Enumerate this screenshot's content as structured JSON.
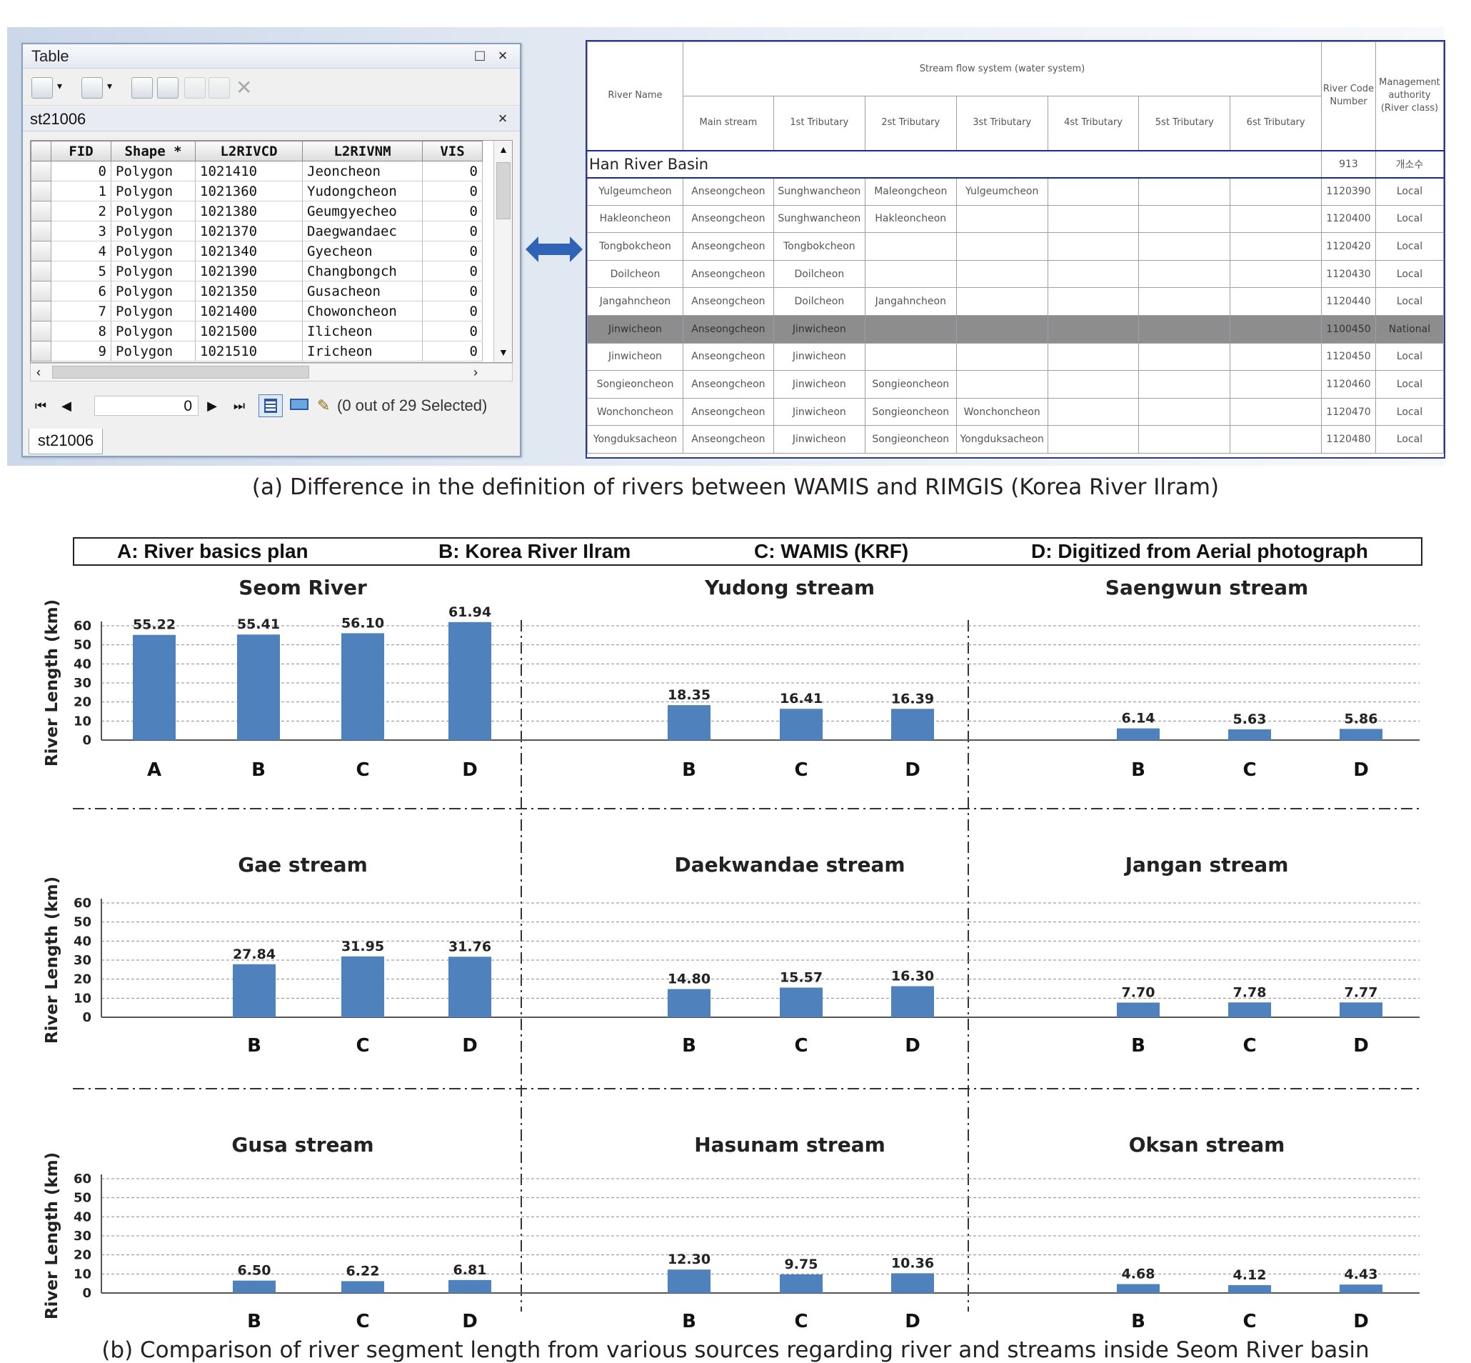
{
  "arcmap": {
    "window_title": "Table",
    "layer_name": "st21006",
    "columns": [
      "FID",
      "Shape *",
      "L2RIVCD",
      "L2RIVNM",
      "VIS"
    ],
    "rows": [
      [
        "0",
        "Polygon",
        "1021410",
        "Jeoncheon",
        "0"
      ],
      [
        "1",
        "Polygon",
        "1021360",
        "Yudongcheon",
        "0"
      ],
      [
        "2",
        "Polygon",
        "1021380",
        "Geumgyecheo",
        "0"
      ],
      [
        "3",
        "Polygon",
        "1021370",
        "Daegwandaec",
        "0"
      ],
      [
        "4",
        "Polygon",
        "1021340",
        "Gyecheon",
        "0"
      ],
      [
        "5",
        "Polygon",
        "1021390",
        "Changbongch",
        "0"
      ],
      [
        "6",
        "Polygon",
        "1021350",
        "Gusacheon",
        "0"
      ],
      [
        "7",
        "Polygon",
        "1021400",
        "Chowoncheon",
        "0"
      ],
      [
        "8",
        "Polygon",
        "1021500",
        "Ilicheon",
        "0"
      ],
      [
        "9",
        "Polygon",
        "1021510",
        "Iricheon",
        "0"
      ]
    ],
    "record_index": "0",
    "selection_status": "(0 out of 29 Selected)",
    "tab_label": "st21006",
    "icons": [
      "table-options-icon",
      "related-tables-icon",
      "select-by-attributes-icon",
      "switch-selection-icon",
      "clear-selection-icon",
      "zoom-to-selected-icon",
      "delete-selected-icon",
      "first-record-icon",
      "previous-record-icon",
      "next-record-icon",
      "last-record-icon",
      "show-all-records-icon",
      "show-selected-records-icon",
      "edit-pencil-icon"
    ]
  },
  "rimgis": {
    "header_river_name": "River Name",
    "header_stream_system": "Stream flow system (water system)",
    "sub_headers": [
      "Main stream",
      "1st Tributary",
      "2st Tributary",
      "3st Tributary",
      "4st Tributary",
      "5st Tributary",
      "6st Tributary"
    ],
    "header_code": "River Code Number",
    "header_authority": "Management authority (River class)",
    "basin_name": "Han River Basin",
    "basin_code": "913",
    "basin_authority": "개소수",
    "rows": [
      {
        "name": "Yulgeumcheon",
        "sys": [
          "Anseongcheon",
          "Sunghwancheon",
          "Maleongcheon",
          "Yulgeumcheon",
          "",
          "",
          ""
        ],
        "code": "1120390",
        "cls": "Local"
      },
      {
        "name": "Hakleoncheon",
        "sys": [
          "Anseongcheon",
          "Sunghwancheon",
          "Hakleoncheon",
          "",
          "",
          "",
          ""
        ],
        "code": "1120400",
        "cls": "Local"
      },
      {
        "name": "Tongbokcheon",
        "sys": [
          "Anseongcheon",
          "Tongbokcheon",
          "",
          "",
          "",
          "",
          ""
        ],
        "code": "1120420",
        "cls": "Local"
      },
      {
        "name": "Doilcheon",
        "sys": [
          "Anseongcheon",
          "Doilcheon",
          "",
          "",
          "",
          "",
          ""
        ],
        "code": "1120430",
        "cls": "Local"
      },
      {
        "name": "Jangahncheon",
        "sys": [
          "Anseongcheon",
          "Doilcheon",
          "Jangahncheon",
          "",
          "",
          "",
          ""
        ],
        "code": "1120440",
        "cls": "Local"
      },
      {
        "name": "Jinwicheon",
        "sys": [
          "Anseongcheon",
          "Jinwicheon",
          "",
          "",
          "",
          "",
          ""
        ],
        "code": "1100450",
        "cls": "National",
        "highlight": true
      },
      {
        "name": "Jinwicheon",
        "sys": [
          "Anseongcheon",
          "Jinwicheon",
          "",
          "",
          "",
          "",
          ""
        ],
        "code": "1120450",
        "cls": "Local"
      },
      {
        "name": "Songieoncheon",
        "sys": [
          "Anseongcheon",
          "Jinwicheon",
          "Songieoncheon",
          "",
          "",
          "",
          ""
        ],
        "code": "1120460",
        "cls": "Local"
      },
      {
        "name": "Wonchoncheon",
        "sys": [
          "Anseongcheon",
          "Jinwicheon",
          "Songieoncheon",
          "Wonchoncheon",
          "",
          "",
          ""
        ],
        "code": "1120470",
        "cls": "Local"
      },
      {
        "name": "Yongduksacheon",
        "sys": [
          "Anseongcheon",
          "Jinwicheon",
          "Songieoncheon",
          "Yongduksacheon",
          "",
          "",
          ""
        ],
        "code": "1120480",
        "cls": "Local"
      }
    ]
  },
  "caption_a": "(a) Difference in the definition of rivers between WAMIS and RIMGIS (Korea River Ilram)",
  "caption_b": "(b) Comparison of river segment length from various sources regarding river and streams inside Seom River basin",
  "legend": {
    "a": "A: River basics plan",
    "b": "B: Korea River Ilram",
    "c": "C: WAMIS (KRF)",
    "d": "D: Digitized from Aerial photograph"
  },
  "colors": {
    "bar": "#4f81bd",
    "rimgis_border": "#1a2a8a",
    "highlight_row": "#8d8d8d"
  },
  "chart_data": [
    {
      "type": "bar",
      "title": "Seom River",
      "categories": [
        "A",
        "B",
        "C",
        "D"
      ],
      "values": [
        55.22,
        55.41,
        56.1,
        61.94
      ],
      "ylabel": "River Length (km)",
      "ylim": [
        0,
        60
      ],
      "yticks": [
        "0",
        "10",
        "20",
        "30",
        "40",
        "50",
        "60"
      ],
      "grid": true
    },
    {
      "type": "bar",
      "title": "Yudong stream",
      "categories": [
        "B",
        "C",
        "D"
      ],
      "values": [
        18.35,
        16.41,
        16.39
      ],
      "ylim": [
        0,
        60
      ],
      "grid": true
    },
    {
      "type": "bar",
      "title": "Saengwun stream",
      "categories": [
        "B",
        "C",
        "D"
      ],
      "values": [
        6.14,
        5.63,
        5.86
      ],
      "ylim": [
        0,
        60
      ],
      "grid": true
    },
    {
      "type": "bar",
      "title": "Gae stream",
      "categories": [
        "B",
        "C",
        "D"
      ],
      "values": [
        27.84,
        31.95,
        31.76
      ],
      "ylabel": "River Length (km)",
      "ylim": [
        0,
        60
      ],
      "yticks": [
        "0",
        "10",
        "20",
        "30",
        "40",
        "50",
        "60"
      ],
      "grid": true
    },
    {
      "type": "bar",
      "title": "Daekwandae stream",
      "categories": [
        "B",
        "C",
        "D"
      ],
      "values": [
        14.8,
        15.57,
        16.3
      ],
      "ylim": [
        0,
        60
      ],
      "grid": true
    },
    {
      "type": "bar",
      "title": "Jangan stream",
      "categories": [
        "B",
        "C",
        "D"
      ],
      "values": [
        7.7,
        7.78,
        7.77
      ],
      "ylim": [
        0,
        60
      ],
      "grid": true
    },
    {
      "type": "bar",
      "title": "Gusa stream",
      "categories": [
        "B",
        "C",
        "D"
      ],
      "values": [
        6.5,
        6.22,
        6.81
      ],
      "ylabel": "River Length (km)",
      "ylim": [
        0,
        60
      ],
      "yticks": [
        "0",
        "10",
        "20",
        "30",
        "40",
        "50",
        "60"
      ],
      "grid": true
    },
    {
      "type": "bar",
      "title": "Hasunam stream",
      "categories": [
        "B",
        "C",
        "D"
      ],
      "values": [
        12.3,
        9.75,
        10.36
      ],
      "ylim": [
        0,
        60
      ],
      "grid": true
    },
    {
      "type": "bar",
      "title": "Oksan stream",
      "categories": [
        "B",
        "C",
        "D"
      ],
      "values": [
        4.68,
        4.12,
        4.43
      ],
      "ylim": [
        0,
        60
      ],
      "grid": true
    }
  ]
}
